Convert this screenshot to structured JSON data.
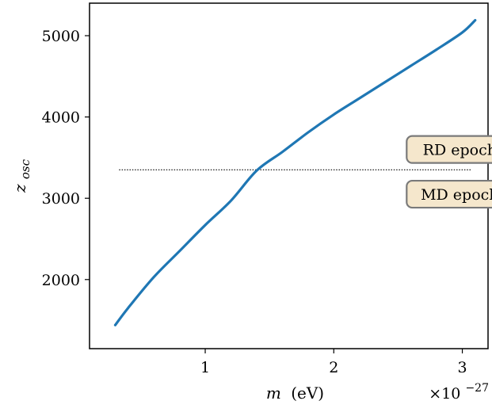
{
  "chart_data": {
    "type": "line",
    "xlabel": "m (eV)",
    "xlabel_var": "m",
    "xlabel_unit": "(eV)",
    "ylabel": "z_osc",
    "ylabel_var": "z",
    "ylabel_sub": "osc",
    "x_scale_label": "×10",
    "x_scale_exp": "−27",
    "x_ticks": [
      1,
      2,
      3
    ],
    "x_tick_labels": [
      "1",
      "2",
      "3"
    ],
    "y_ticks": [
      2000,
      3000,
      4000,
      5000
    ],
    "y_tick_labels": [
      "2000",
      "3000",
      "4000",
      "5000"
    ],
    "xlim": [
      0.1,
      3.2
    ],
    "ylim": [
      1150,
      5400
    ],
    "grid": false,
    "legend": "none",
    "series": [
      {
        "color": "#1f77b4",
        "x": [
          0.3,
          0.4,
          0.6,
          0.8,
          1.0,
          1.2,
          1.4,
          1.6,
          1.8,
          2.0,
          2.2,
          2.4,
          2.6,
          2.8,
          3.0,
          3.1
        ],
        "y": [
          1440,
          1650,
          2030,
          2350,
          2670,
          2970,
          3340,
          3570,
          3810,
          4030,
          4230,
          4430,
          4630,
          4830,
          5040,
          5190
        ]
      }
    ],
    "hline": {
      "y": 3350,
      "x_start": 0.33,
      "x_end": 3.07,
      "style": "dotted",
      "color": "#000000"
    },
    "annotations": [
      {
        "text": "RD epoch",
        "x": 2.98,
        "y": 3600,
        "bg": "#f5e7cc",
        "border": "#7a7a7a"
      },
      {
        "text": "MD epoch",
        "x": 2.98,
        "y": 3050,
        "bg": "#f5e7cc",
        "border": "#7a7a7a"
      }
    ]
  }
}
